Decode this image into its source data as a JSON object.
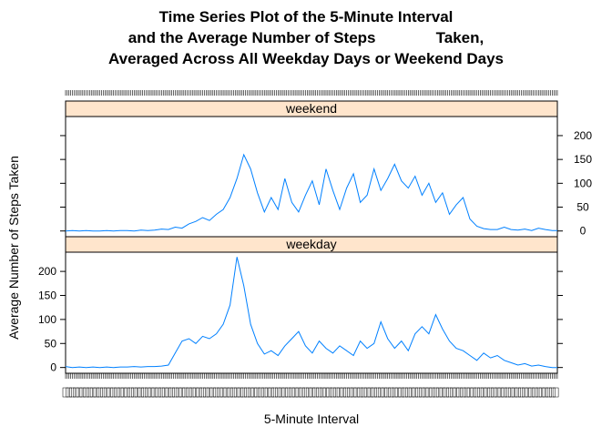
{
  "chart_data": {
    "type": "line",
    "title_lines": [
      "Time Series Plot of the 5-Minute Interval",
      "and the Average Number of Steps              Taken,",
      "Averaged Across All Weekday Days or Weekend Days"
    ],
    "xlabel": "5-Minute Interval",
    "ylabel": "Average Number of Steps Taken",
    "ylim": [
      -12,
      240
    ],
    "yticks": [
      0,
      50,
      100,
      150,
      200
    ],
    "xlim": [
      0,
      287
    ],
    "line_color": "#0080ff",
    "strip_color": "#ffe5cc",
    "panels": [
      {
        "name": "weekend",
        "x": [
          0,
          4,
          8,
          12,
          16,
          20,
          24,
          28,
          32,
          36,
          40,
          44,
          48,
          52,
          56,
          60,
          64,
          68,
          72,
          76,
          80,
          84,
          88,
          92,
          96,
          100,
          104,
          108,
          112,
          116,
          120,
          124,
          128,
          132,
          136,
          140,
          144,
          148,
          152,
          156,
          160,
          164,
          168,
          172,
          176,
          180,
          184,
          188,
          192,
          196,
          200,
          204,
          208,
          212,
          216,
          220,
          224,
          228,
          232,
          236,
          240,
          244,
          248,
          252,
          256,
          260,
          264,
          268,
          272,
          276,
          280,
          284,
          287
        ],
        "values": [
          0,
          1,
          0,
          1,
          0,
          0,
          1,
          0,
          1,
          1,
          0,
          2,
          1,
          2,
          4,
          3,
          8,
          6,
          15,
          20,
          28,
          22,
          35,
          45,
          70,
          110,
          160,
          130,
          80,
          40,
          70,
          45,
          110,
          60,
          40,
          75,
          105,
          55,
          130,
          85,
          45,
          90,
          120,
          60,
          75,
          130,
          85,
          110,
          140,
          105,
          90,
          115,
          75,
          100,
          60,
          80,
          35,
          55,
          70,
          25,
          10,
          5,
          3,
          3,
          8,
          3,
          2,
          4,
          1,
          6,
          3,
          1,
          1
        ]
      },
      {
        "name": "weekday",
        "x": [
          0,
          4,
          8,
          12,
          16,
          20,
          24,
          28,
          32,
          36,
          40,
          44,
          48,
          52,
          56,
          60,
          64,
          68,
          72,
          76,
          80,
          84,
          88,
          92,
          96,
          100,
          104,
          108,
          112,
          116,
          120,
          124,
          128,
          132,
          136,
          140,
          144,
          148,
          152,
          156,
          160,
          164,
          168,
          172,
          176,
          180,
          184,
          188,
          192,
          196,
          200,
          204,
          208,
          212,
          216,
          220,
          224,
          228,
          232,
          236,
          240,
          244,
          248,
          252,
          256,
          260,
          264,
          268,
          272,
          276,
          280,
          284,
          287
        ],
        "values": [
          2,
          0,
          1,
          0,
          1,
          0,
          1,
          0,
          1,
          1,
          2,
          1,
          2,
          2,
          3,
          5,
          30,
          55,
          60,
          50,
          65,
          60,
          70,
          90,
          130,
          230,
          170,
          90,
          50,
          28,
          35,
          25,
          45,
          60,
          75,
          45,
          30,
          55,
          40,
          30,
          45,
          35,
          25,
          55,
          40,
          50,
          95,
          60,
          40,
          55,
          35,
          70,
          85,
          70,
          110,
          80,
          55,
          40,
          35,
          25,
          15,
          30,
          20,
          25,
          15,
          10,
          5,
          8,
          3,
          5,
          2,
          0,
          0
        ]
      }
    ]
  }
}
